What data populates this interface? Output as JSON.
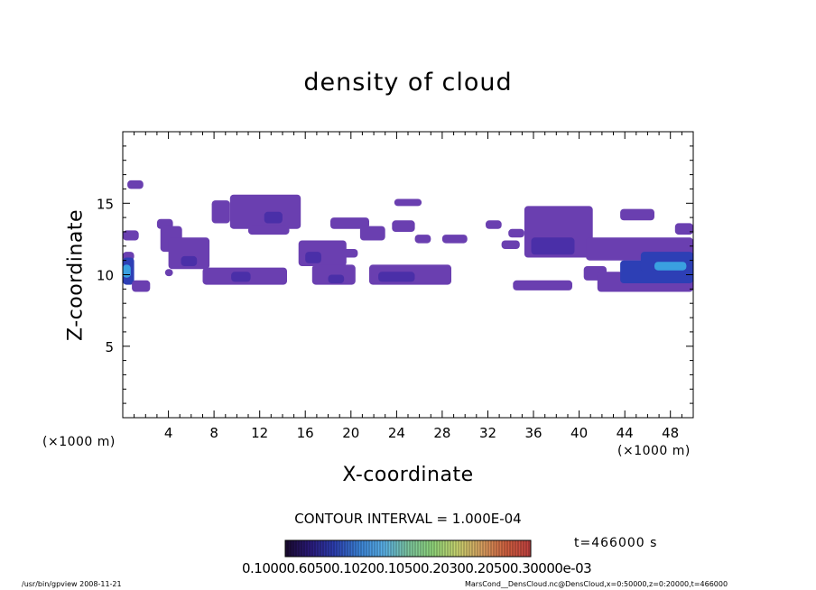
{
  "chart_data": {
    "type": "heatmap",
    "title": "density of cloud",
    "xlabel": "X-coordinate",
    "ylabel": "Z-coordinate",
    "x_unit_left": "(×1000 m)",
    "x_unit_right": "(×1000 m)",
    "xlim": [
      0,
      50
    ],
    "ylim": [
      0,
      20
    ],
    "xticks": [
      "4",
      "8",
      "12",
      "16",
      "20",
      "24",
      "28",
      "32",
      "36",
      "40",
      "44",
      "48"
    ],
    "xtick_values": [
      4,
      8,
      12,
      16,
      20,
      24,
      28,
      32,
      36,
      40,
      44,
      48
    ],
    "yticks": [
      "5",
      "10",
      "15"
    ],
    "ytick_values": [
      5,
      10,
      15
    ],
    "contour_interval": "CONTOUR INTERVAL = 1.000E-04",
    "time_label": "t=466000 s",
    "colorbar_labels": "0.10000.60500.10200.10500.20300.20500.30000e-03",
    "colorbar_colors": [
      "#1a0a2e",
      "#2a1a7a",
      "#2d3fb0",
      "#3b82d6",
      "#5ab0e8",
      "#7cc6a0",
      "#8fd47a",
      "#c8d470",
      "#d8a060",
      "#d06040",
      "#c04040"
    ],
    "levels": {
      "low": "#6a3fb0",
      "mid": "#4a2fa8",
      "high": "#2d3fb5",
      "peak": "#3aa0e0"
    },
    "regions": [
      {
        "x0": 0.4,
        "x1": 1.8,
        "z0": 16.0,
        "z1": 16.6,
        "level": "low"
      },
      {
        "x0": 0.0,
        "x1": 1.4,
        "z0": 12.4,
        "z1": 13.1,
        "level": "low"
      },
      {
        "x0": 0.0,
        "x1": 1.0,
        "z0": 11.0,
        "z1": 11.6,
        "level": "low"
      },
      {
        "x0": 0.0,
        "x1": 1.0,
        "z0": 9.3,
        "z1": 11.2,
        "level": "high"
      },
      {
        "x0": 0.0,
        "x1": 0.7,
        "z0": 9.8,
        "z1": 10.7,
        "level": "peak"
      },
      {
        "x0": 0.8,
        "x1": 2.4,
        "z0": 8.8,
        "z1": 9.6,
        "level": "low"
      },
      {
        "x0": 3.0,
        "x1": 4.4,
        "z0": 13.2,
        "z1": 13.9,
        "level": "low"
      },
      {
        "x0": 3.3,
        "x1": 5.2,
        "z0": 11.6,
        "z1": 13.4,
        "level": "low"
      },
      {
        "x0": 4.0,
        "x1": 7.6,
        "z0": 10.4,
        "z1": 12.6,
        "level": "low"
      },
      {
        "x0": 5.1,
        "x1": 6.5,
        "z0": 10.6,
        "z1": 11.3,
        "level": "mid"
      },
      {
        "x0": 3.7,
        "x1": 4.4,
        "z0": 9.9,
        "z1": 10.4,
        "level": "low"
      },
      {
        "x0": 7.0,
        "x1": 14.4,
        "z0": 9.3,
        "z1": 10.5,
        "level": "low"
      },
      {
        "x0": 9.5,
        "x1": 11.2,
        "z0": 9.5,
        "z1": 10.2,
        "level": "mid"
      },
      {
        "x0": 7.8,
        "x1": 9.4,
        "z0": 13.6,
        "z1": 15.2,
        "level": "low"
      },
      {
        "x0": 9.4,
        "x1": 15.6,
        "z0": 13.2,
        "z1": 15.6,
        "level": "low"
      },
      {
        "x0": 12.4,
        "x1": 14.0,
        "z0": 13.6,
        "z1": 14.4,
        "level": "mid"
      },
      {
        "x0": 11.0,
        "x1": 14.6,
        "z0": 12.8,
        "z1": 13.4,
        "level": "low"
      },
      {
        "x0": 15.4,
        "x1": 19.6,
        "z0": 10.6,
        "z1": 12.4,
        "level": "low"
      },
      {
        "x0": 16.0,
        "x1": 17.4,
        "z0": 10.8,
        "z1": 11.6,
        "level": "mid"
      },
      {
        "x0": 16.6,
        "x1": 20.4,
        "z0": 9.3,
        "z1": 10.7,
        "level": "low"
      },
      {
        "x0": 18.0,
        "x1": 19.4,
        "z0": 9.4,
        "z1": 10.0,
        "level": "mid"
      },
      {
        "x0": 19.2,
        "x1": 20.6,
        "z0": 11.2,
        "z1": 11.8,
        "level": "low"
      },
      {
        "x0": 18.2,
        "x1": 21.6,
        "z0": 13.2,
        "z1": 14.0,
        "level": "low"
      },
      {
        "x0": 20.8,
        "x1": 23.0,
        "z0": 12.4,
        "z1": 13.4,
        "level": "low"
      },
      {
        "x0": 23.6,
        "x1": 25.6,
        "z0": 13.0,
        "z1": 13.8,
        "level": "low"
      },
      {
        "x0": 25.6,
        "x1": 27.0,
        "z0": 12.2,
        "z1": 12.8,
        "level": "low"
      },
      {
        "x0": 23.8,
        "x1": 26.2,
        "z0": 14.8,
        "z1": 15.3,
        "level": "low"
      },
      {
        "x0": 28.0,
        "x1": 30.2,
        "z0": 12.2,
        "z1": 12.8,
        "level": "low"
      },
      {
        "x0": 31.8,
        "x1": 33.2,
        "z0": 13.2,
        "z1": 13.8,
        "level": "low"
      },
      {
        "x0": 21.6,
        "x1": 28.8,
        "z0": 9.3,
        "z1": 10.7,
        "level": "low"
      },
      {
        "x0": 22.4,
        "x1": 25.6,
        "z0": 9.5,
        "z1": 10.2,
        "level": "mid"
      },
      {
        "x0": 33.2,
        "x1": 34.8,
        "z0": 11.8,
        "z1": 12.4,
        "level": "low"
      },
      {
        "x0": 33.8,
        "x1": 35.2,
        "z0": 12.6,
        "z1": 13.2,
        "level": "low"
      },
      {
        "x0": 35.2,
        "x1": 41.2,
        "z0": 11.2,
        "z1": 14.8,
        "level": "low"
      },
      {
        "x0": 35.8,
        "x1": 39.6,
        "z0": 11.4,
        "z1": 12.6,
        "level": "mid"
      },
      {
        "x0": 40.6,
        "x1": 50.0,
        "z0": 11.0,
        "z1": 12.6,
        "level": "low"
      },
      {
        "x0": 43.6,
        "x1": 46.6,
        "z0": 13.8,
        "z1": 14.6,
        "level": "low"
      },
      {
        "x0": 48.4,
        "x1": 50.0,
        "z0": 12.8,
        "z1": 13.6,
        "level": "low"
      },
      {
        "x0": 34.2,
        "x1": 39.4,
        "z0": 8.9,
        "z1": 9.6,
        "level": "low"
      },
      {
        "x0": 40.4,
        "x1": 42.4,
        "z0": 9.6,
        "z1": 10.6,
        "level": "low"
      },
      {
        "x0": 41.6,
        "x1": 50.0,
        "z0": 8.8,
        "z1": 10.2,
        "level": "low"
      },
      {
        "x0": 43.6,
        "x1": 50.0,
        "z0": 9.4,
        "z1": 11.0,
        "level": "high"
      },
      {
        "x0": 45.4,
        "x1": 50.0,
        "z0": 10.2,
        "z1": 11.6,
        "level": "high"
      },
      {
        "x0": 46.6,
        "x1": 49.4,
        "z0": 10.3,
        "z1": 10.9,
        "level": "peak"
      }
    ]
  },
  "footer": {
    "left": "/usr/bin/gpview   2008-11-21",
    "right": "MarsCond__DensCloud.nc@DensCloud,x=0:50000,z=0:20000,t=466000"
  }
}
